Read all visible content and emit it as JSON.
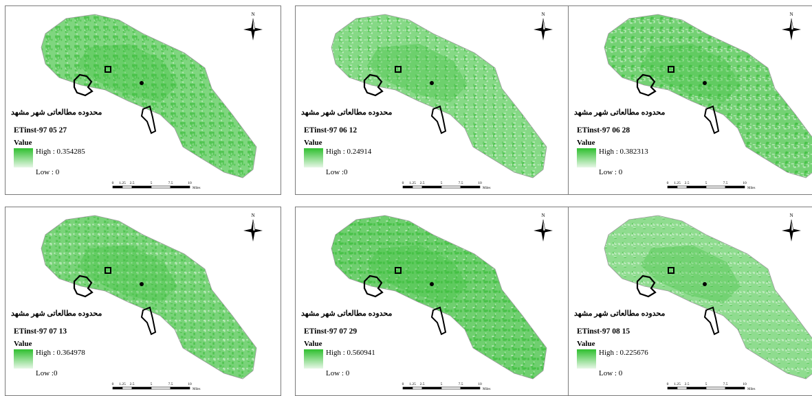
{
  "legend": {
    "region_title": "محدوده مطالعاتی شهر مشهد",
    "value_label": "Value",
    "north_letter": "N",
    "scale_ticks": [
      "0",
      "1.25",
      "2.5",
      "5",
      "7.5",
      "10"
    ],
    "scale_unit": "Miles"
  },
  "colors": {
    "high": "#2fbf2f",
    "low": "#e6f7e6",
    "boundary": "#000000"
  },
  "panels": [
    {
      "layer": "ETinst-97 05 27",
      "high": "High : 0.354285",
      "low": "Low : 0"
    },
    {
      "layer": "ETinst-97 06 12",
      "high": "High : 0.24914",
      "low": "Low :0"
    },
    {
      "layer": "ETinst-97 06 28",
      "high": "High : 0.382313",
      "low": "Low : 0"
    },
    {
      "layer": "ETinst-97 07 13",
      "high": "High : 0.364978",
      "low": "Low :0"
    },
    {
      "layer": "ETinst-97 07 29",
      "high": "High : 0.560941",
      "low": "Low : 0"
    },
    {
      "layer": "ETinst-97 08 15",
      "high": "High : 0.225676",
      "low": "Low : 0"
    }
  ]
}
